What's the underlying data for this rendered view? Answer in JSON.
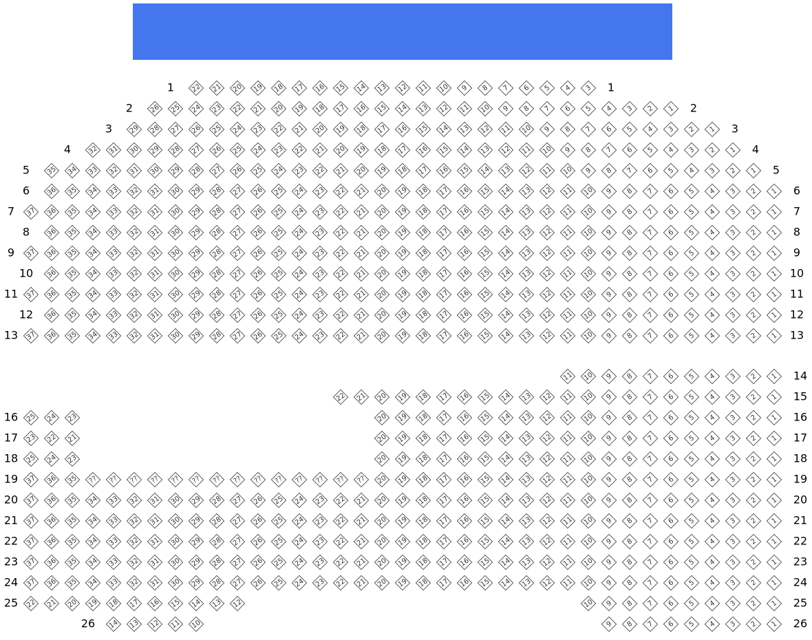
{
  "rows": [
    {
      "label": "1",
      "seats": [
        [
          22,
          21,
          20,
          19,
          18,
          17,
          16,
          15,
          14,
          13,
          12,
          11,
          10,
          9,
          8,
          7,
          6,
          5,
          4,
          3
        ]
      ]
    },
    {
      "label": "2",
      "seats": [
        [
          26,
          25,
          24,
          23,
          22,
          21,
          20,
          19,
          18,
          17,
          16,
          15,
          14,
          13,
          12,
          11,
          10,
          9,
          8,
          7,
          6,
          5,
          4,
          3,
          2,
          1
        ]
      ]
    },
    {
      "label": "3",
      "seats": [
        [
          29,
          28,
          27,
          26,
          25,
          24,
          23,
          22,
          21,
          20,
          19,
          18,
          17,
          16,
          15,
          14,
          13,
          12,
          11,
          10,
          9,
          8,
          7,
          6,
          5,
          4,
          3,
          2,
          1
        ]
      ]
    },
    {
      "label": "4",
      "seats": [
        [
          32,
          31,
          30,
          29,
          28,
          27,
          26,
          25,
          24,
          23,
          22,
          21,
          20,
          19,
          18,
          17,
          16,
          15,
          14,
          13,
          12,
          11,
          10,
          9,
          8,
          7,
          6,
          5,
          4,
          3,
          2,
          1
        ]
      ]
    },
    {
      "label": "5",
      "seats": [
        [
          35,
          34,
          33,
          32,
          31,
          30,
          29,
          28,
          27,
          26,
          25,
          24,
          23,
          22,
          21,
          20,
          19,
          18,
          17,
          16,
          15,
          14,
          13,
          12,
          11,
          10,
          9,
          8,
          7,
          6,
          5,
          4,
          3,
          2,
          1
        ]
      ]
    },
    {
      "label": "6",
      "seats": [
        [
          36,
          35,
          34,
          33,
          32,
          31,
          30,
          29,
          28,
          27,
          26,
          25,
          24,
          23,
          22,
          21,
          20,
          19,
          18,
          17,
          16,
          15,
          14,
          13,
          12,
          11,
          10,
          9,
          8,
          7,
          6,
          5,
          4,
          3,
          2,
          1
        ]
      ]
    },
    {
      "label": "7",
      "seats": [
        [
          37,
          36,
          35,
          34,
          33,
          32,
          31,
          30,
          29,
          28,
          27,
          26,
          25,
          24,
          23,
          22,
          21,
          20,
          19,
          18,
          17,
          16,
          15,
          14,
          13,
          12,
          11,
          10,
          9,
          8,
          7,
          6,
          5,
          4,
          3,
          2,
          1
        ]
      ]
    },
    {
      "label": "8",
      "seats": [
        [
          36,
          35,
          34,
          33,
          32,
          31,
          30,
          29,
          28,
          27,
          26,
          25,
          24,
          23,
          22,
          21,
          20,
          19,
          18,
          17,
          16,
          15,
          14,
          13,
          12,
          11,
          10,
          9,
          8,
          7,
          6,
          5,
          4,
          3,
          2,
          1
        ]
      ]
    },
    {
      "label": "9",
      "seats": [
        [
          37,
          36,
          35,
          34,
          33,
          32,
          31,
          30,
          29,
          28,
          27,
          26,
          25,
          24,
          23,
          22,
          21,
          20,
          19,
          18,
          17,
          16,
          15,
          14,
          13,
          12,
          11,
          10,
          9,
          8,
          7,
          6,
          5,
          4,
          3,
          2,
          1
        ]
      ]
    },
    {
      "label": "10",
      "seats": [
        [
          36,
          35,
          34,
          33,
          32,
          31,
          30,
          29,
          28,
          27,
          26,
          25,
          24,
          23,
          22,
          21,
          20,
          19,
          18,
          17,
          16,
          15,
          14,
          13,
          12,
          11,
          10,
          9,
          8,
          7,
          6,
          5,
          4,
          3,
          2,
          1
        ]
      ]
    },
    {
      "label": "11",
      "seats": [
        [
          37,
          36,
          35,
          34,
          33,
          32,
          31,
          30,
          29,
          28,
          27,
          26,
          25,
          24,
          23,
          22,
          21,
          20,
          19,
          18,
          17,
          16,
          15,
          14,
          13,
          12,
          11,
          10,
          9,
          8,
          7,
          6,
          5,
          4,
          3,
          2,
          1
        ]
      ]
    },
    {
      "label": "12",
      "seats": [
        [
          36,
          35,
          34,
          33,
          32,
          31,
          30,
          29,
          28,
          27,
          26,
          25,
          24,
          23,
          22,
          21,
          20,
          19,
          18,
          17,
          16,
          15,
          14,
          13,
          12,
          11,
          10,
          9,
          8,
          7,
          6,
          5,
          4,
          3,
          2,
          1
        ]
      ]
    },
    {
      "label": "13",
      "seats": [
        [
          37,
          36,
          35,
          34,
          33,
          32,
          31,
          30,
          29,
          28,
          27,
          26,
          25,
          24,
          23,
          22,
          21,
          20,
          19,
          18,
          17,
          16,
          15,
          14,
          13,
          12,
          11,
          10,
          9,
          8,
          7,
          6,
          5,
          4,
          3,
          2,
          1
        ]
      ]
    },
    {
      "label": "14",
      "seats": [
        [
          11,
          10,
          9,
          8,
          7,
          6,
          5,
          4,
          3,
          2,
          1
        ]
      ]
    },
    {
      "label": "15",
      "seats": [
        [
          22,
          21,
          20,
          19,
          18,
          17,
          16,
          15,
          14,
          13,
          12,
          11,
          10,
          9,
          8,
          7,
          6,
          5,
          4,
          3,
          2,
          1
        ]
      ]
    },
    {
      "label": "16",
      "seats": [
        [
          25,
          24,
          23
        ],
        [
          20,
          19,
          18,
          17,
          16,
          15,
          14,
          13,
          12,
          11,
          10,
          9,
          8,
          7,
          6,
          5,
          4,
          3,
          2,
          1
        ]
      ]
    },
    {
      "label": "17",
      "seats": [
        [
          23,
          22,
          21
        ],
        [
          20,
          19,
          18,
          17,
          16,
          15,
          14,
          13,
          12,
          11,
          10,
          9,
          8,
          7,
          6,
          5,
          4,
          3,
          2,
          1
        ]
      ]
    },
    {
      "label": "18",
      "seats": [
        [
          25,
          24,
          23
        ],
        [
          20,
          19,
          18,
          17,
          16,
          15,
          14,
          13,
          12,
          11,
          10,
          9,
          8,
          7,
          6,
          5,
          4,
          3,
          2,
          1
        ]
      ]
    },
    {
      "label": "19",
      "seats": [
        [
          37,
          36,
          35,
          "??",
          "??",
          "??",
          "??",
          "??",
          "??",
          "??",
          "??",
          "??",
          "??",
          "??",
          "??",
          "??",
          "??",
          20,
          19,
          18,
          17,
          16,
          15,
          14,
          13,
          12,
          11,
          10,
          9,
          8,
          7,
          6,
          5,
          4,
          3,
          2,
          1
        ]
      ]
    },
    {
      "label": "20",
      "seats": [
        [
          37,
          36,
          35,
          34,
          33,
          32,
          31,
          30,
          29,
          28,
          27,
          26,
          25,
          24,
          23,
          22,
          21,
          20,
          19,
          18,
          17,
          16,
          15,
          14,
          13,
          12,
          11,
          10,
          9,
          8,
          7,
          6,
          5,
          4,
          3,
          2,
          1
        ]
      ]
    },
    {
      "label": "21",
      "seats": [
        [
          37,
          36,
          35,
          34,
          33,
          32,
          31,
          30,
          29,
          28,
          27,
          26,
          25,
          24,
          23,
          22,
          21,
          20,
          19,
          18,
          17,
          16,
          15,
          14,
          13,
          12,
          11,
          10,
          9,
          8,
          7,
          6,
          5,
          4,
          3,
          2,
          1
        ]
      ]
    },
    {
      "label": "22",
      "seats": [
        [
          37,
          36,
          35,
          34,
          33,
          32,
          31,
          30,
          29,
          28,
          27,
          26,
          25,
          24,
          23,
          22,
          21,
          20,
          19,
          18,
          17,
          16,
          15,
          14,
          13,
          12,
          11,
          10,
          9,
          8,
          7,
          6,
          5,
          4,
          3,
          2,
          1
        ]
      ]
    },
    {
      "label": "23",
      "seats": [
        [
          37,
          36,
          35,
          34,
          33,
          32,
          31,
          30,
          29,
          28,
          27,
          26,
          25,
          24,
          23,
          22,
          21,
          20,
          19,
          18,
          17,
          16,
          15,
          14,
          13,
          12,
          11,
          10,
          9,
          8,
          7,
          6,
          5,
          4,
          3,
          2,
          1
        ]
      ]
    },
    {
      "label": "24",
      "seats": [
        [
          37,
          36,
          35,
          34,
          33,
          32,
          31,
          30,
          29,
          28,
          27,
          26,
          25,
          24,
          23,
          22,
          21,
          20,
          19,
          18,
          17,
          16,
          15,
          14,
          13,
          12,
          11,
          10,
          9,
          8,
          7,
          6,
          5,
          4,
          3,
          2,
          1
        ]
      ]
    },
    {
      "label": "25",
      "seats": [
        [
          22,
          21,
          20,
          19,
          18,
          17,
          16,
          15,
          14,
          13,
          12
        ],
        [
          10,
          9,
          8,
          7,
          6,
          5,
          4,
          3,
          2,
          1
        ]
      ]
    },
    {
      "label": "26",
      "seats": [
        [
          14,
          13,
          12,
          11,
          10
        ],
        [
          9,
          8,
          7,
          6,
          5,
          4,
          3,
          2,
          1
        ]
      ]
    }
  ]
}
